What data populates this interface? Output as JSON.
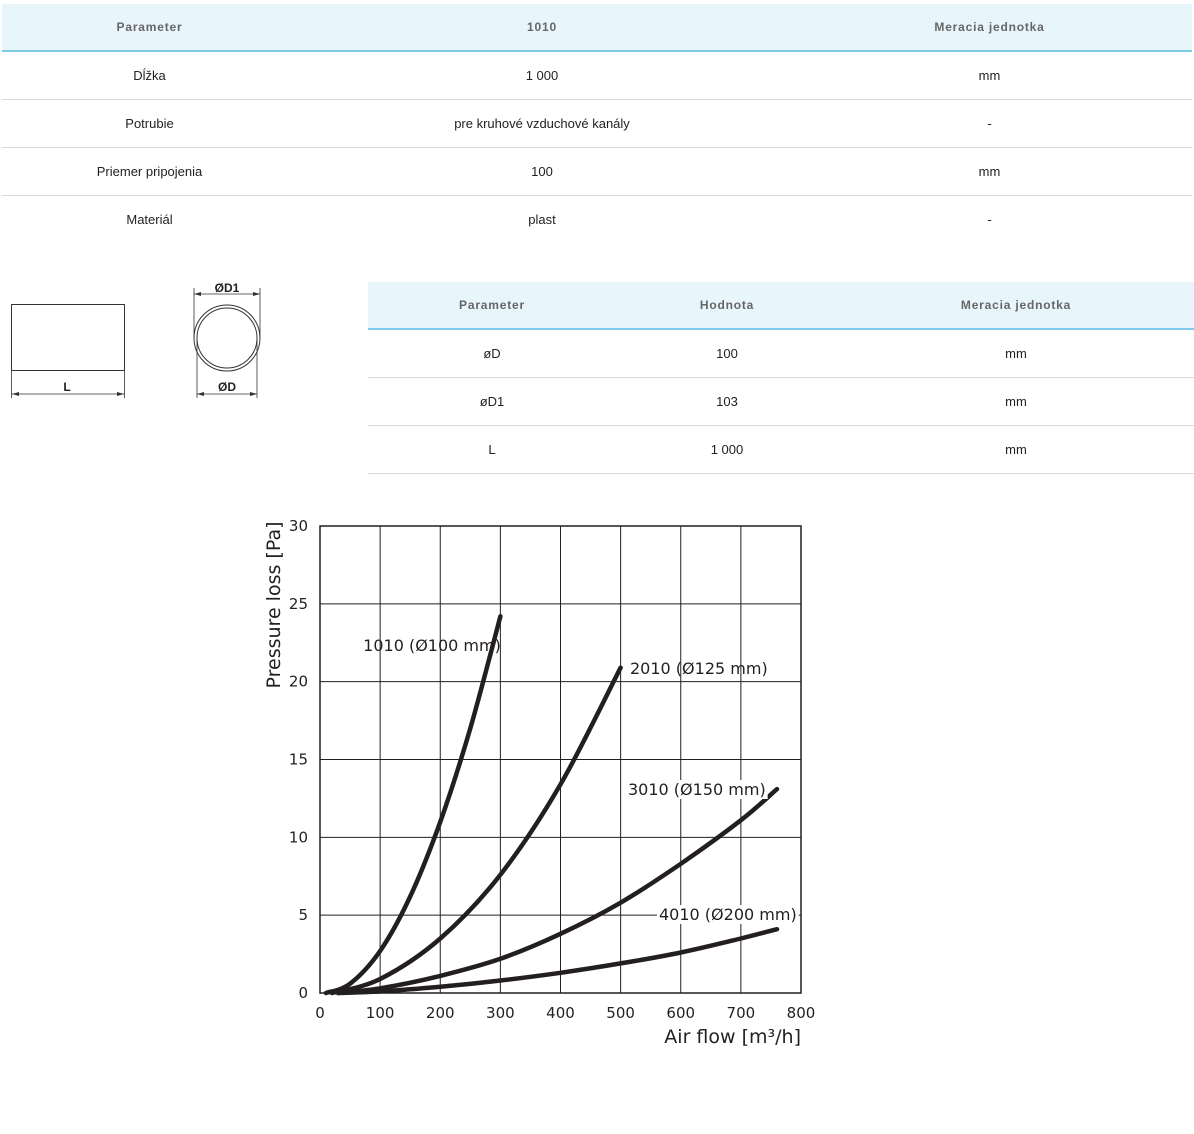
{
  "spec_table": {
    "headers": [
      "Parameter",
      "1010",
      "Meracia jednotka"
    ],
    "rows": [
      [
        "Dĺžka",
        "1 000",
        "mm"
      ],
      [
        "Potrubie",
        "pre kruhové vzduchové kanály",
        "-"
      ],
      [
        "Priemer pripojenia",
        "100",
        "mm"
      ],
      [
        "Materiál",
        "plast",
        "-"
      ]
    ]
  },
  "drawing": {
    "label_length": "L",
    "label_outer_diameter": "ØD1",
    "label_inner_diameter": "ØD"
  },
  "dims_table": {
    "headers": [
      "Parameter",
      "Hodnota",
      "Meracia jednotka"
    ],
    "rows": [
      [
        "øD",
        "100",
        "mm"
      ],
      [
        "øD1",
        "103",
        "mm"
      ],
      [
        "L",
        "1 000",
        "mm"
      ]
    ]
  },
  "chart_data": {
    "type": "line",
    "title": "",
    "xlabel": "Air flow [m³/h]",
    "ylabel": "Pressure loss [Pa]",
    "xlim": [
      0,
      800
    ],
    "ylim": [
      0,
      30
    ],
    "xticks": [
      0,
      100,
      200,
      300,
      400,
      500,
      600,
      700,
      800
    ],
    "yticks": [
      0,
      5,
      10,
      15,
      20,
      25,
      30
    ],
    "grid": true,
    "line_color": "#231f20",
    "series": [
      {
        "name": "1010 (Ø100 mm)",
        "x": [
          10,
          50,
          100,
          150,
          200,
          250,
          300
        ],
        "y": [
          0,
          0.6,
          2.7,
          6.2,
          11,
          17,
          24.2
        ]
      },
      {
        "name": "2010 (Ø125 mm)",
        "x": [
          20,
          100,
          200,
          300,
          400,
          500
        ],
        "y": [
          0,
          0.9,
          3.5,
          7.6,
          13.4,
          20.9
        ]
      },
      {
        "name": "3010 (Ø150 mm)",
        "x": [
          30,
          100,
          200,
          300,
          400,
          500,
          600,
          700,
          760
        ],
        "y": [
          0,
          0.3,
          1.1,
          2.2,
          3.8,
          5.8,
          8.3,
          11.1,
          13.1
        ]
      },
      {
        "name": "4010 (Ø200 mm)",
        "x": [
          30,
          100,
          200,
          300,
          400,
          500,
          600,
          700,
          760
        ],
        "y": [
          0,
          0.1,
          0.4,
          0.8,
          1.3,
          1.9,
          2.6,
          3.5,
          4.1
        ]
      }
    ]
  }
}
